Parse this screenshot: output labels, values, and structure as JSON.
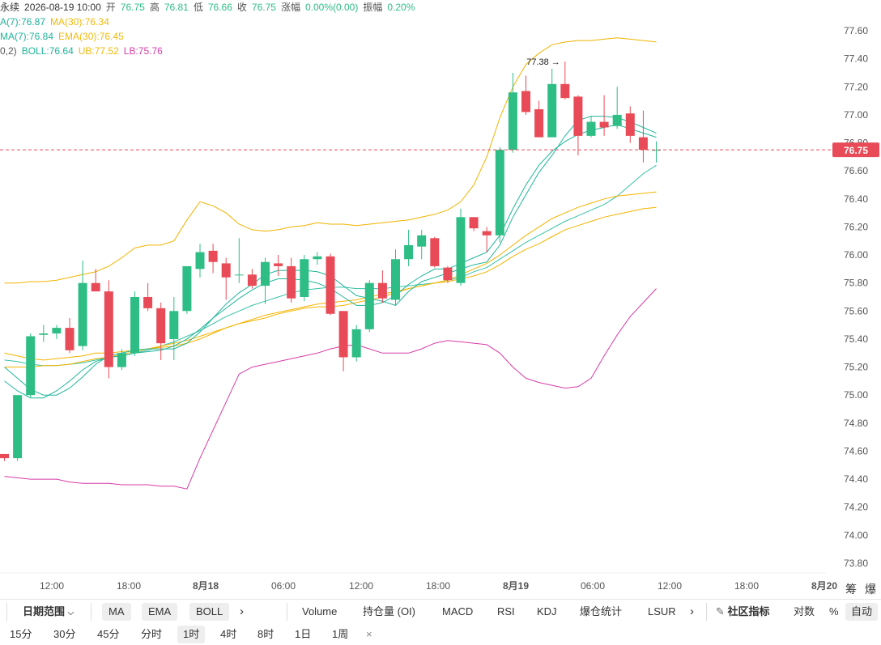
{
  "header": {
    "row1": {
      "symbol_fragment": "永续",
      "datetime": "2026-08-19 10:00",
      "open_label": "开",
      "open": "76.75",
      "high_label": "高",
      "high": "76.81",
      "low_label": "低",
      "low": "76.66",
      "close_label": "收",
      "close": "76.75",
      "change_label": "涨幅",
      "change": "0.00%(0.00)",
      "amp_label": "振幅",
      "amp": "0.20%"
    },
    "row2": {
      "ma7": "A(7):76.87",
      "ma30": "MA(30):76.34"
    },
    "row3": {
      "ema7": "MA(7):76.84",
      "ema30": "EMA(30):76.45"
    },
    "row4": {
      "boll_params": "0,2)",
      "boll": "BOLL:76.64",
      "ub": "UB:77.52",
      "lb": "LB:75.76"
    }
  },
  "chart_data": {
    "type": "candlestick",
    "interval": "1时",
    "ylim": [
      73.8,
      77.7
    ],
    "y_ticks": [
      "77.60",
      "77.40",
      "77.20",
      "77.00",
      "76.80",
      "76.60",
      "76.40",
      "76.20",
      "76.00",
      "75.80",
      "75.60",
      "75.40",
      "75.20",
      "75.00",
      "74.80",
      "74.60",
      "74.40",
      "74.20",
      "74.00",
      "73.80"
    ],
    "x_ticks": [
      "12:00",
      "18:00",
      "8月18",
      "06:00",
      "12:00",
      "18:00",
      "8月19",
      "06:00",
      "12:00",
      "18:00",
      "8月20"
    ],
    "x_tick_bold": [
      false,
      false,
      true,
      false,
      false,
      false,
      true,
      false,
      false,
      false,
      true
    ],
    "current_price": "76.75",
    "high_marker": "77.38",
    "colors": {
      "up": "#2ebd85",
      "down": "#e84b57",
      "ma7": "#20b59a",
      "ma30": "#f5b400",
      "boll_mid": "#36c2a6",
      "boll_up": "#f2b300",
      "boll_low": "#d63ca8",
      "price_line": "#e84b57"
    },
    "candles": [
      [
        74.58,
        74.58,
        74.53,
        74.55
      ],
      [
        74.55,
        75.0,
        74.53,
        75.0
      ],
      [
        75.0,
        75.44,
        74.98,
        75.42
      ],
      [
        75.43,
        75.5,
        75.38,
        75.44
      ],
      [
        75.44,
        75.5,
        75.4,
        75.48
      ],
      [
        75.48,
        75.55,
        75.3,
        75.32
      ],
      [
        75.35,
        75.96,
        75.32,
        75.8
      ],
      [
        75.8,
        75.9,
        75.74,
        75.74
      ],
      [
        75.74,
        75.82,
        75.12,
        75.2
      ],
      [
        75.2,
        75.33,
        75.18,
        75.3
      ],
      [
        75.3,
        75.74,
        75.28,
        75.7
      ],
      [
        75.7,
        75.8,
        75.6,
        75.62
      ],
      [
        75.62,
        75.66,
        75.25,
        75.37
      ],
      [
        75.4,
        75.7,
        75.25,
        75.6
      ],
      [
        75.6,
        75.91,
        75.58,
        75.92
      ],
      [
        75.9,
        76.08,
        75.84,
        76.02
      ],
      [
        76.03,
        76.08,
        75.87,
        75.95
      ],
      [
        75.94,
        75.98,
        75.68,
        75.84
      ],
      [
        75.86,
        76.12,
        75.8,
        75.86
      ],
      [
        75.86,
        75.9,
        75.76,
        75.78
      ],
      [
        75.78,
        75.98,
        75.65,
        75.95
      ],
      [
        75.94,
        76.0,
        75.85,
        75.92
      ],
      [
        75.92,
        75.98,
        75.66,
        75.69
      ],
      [
        75.7,
        76.0,
        75.67,
        75.97
      ],
      [
        75.97,
        76.02,
        75.93,
        75.99
      ],
      [
        75.99,
        76.01,
        75.57,
        75.58
      ],
      [
        75.6,
        75.6,
        75.17,
        75.27
      ],
      [
        75.27,
        75.5,
        75.24,
        75.47
      ],
      [
        75.47,
        75.82,
        75.45,
        75.8
      ],
      [
        75.8,
        75.89,
        75.66,
        75.69
      ],
      [
        75.68,
        76.04,
        75.64,
        75.97
      ],
      [
        75.97,
        76.18,
        75.92,
        76.07
      ],
      [
        76.06,
        76.18,
        75.97,
        76.14
      ],
      [
        76.12,
        76.13,
        75.91,
        75.92
      ],
      [
        75.91,
        75.92,
        75.8,
        75.82
      ],
      [
        75.8,
        76.33,
        75.78,
        76.27
      ],
      [
        76.27,
        76.27,
        76.17,
        76.19
      ],
      [
        76.17,
        76.2,
        76.02,
        76.14
      ],
      [
        76.14,
        76.77,
        76.09,
        76.75
      ],
      [
        76.75,
        77.3,
        76.73,
        77.16
      ],
      [
        77.17,
        77.28,
        77.0,
        77.02
      ],
      [
        77.04,
        77.1,
        76.84,
        76.84
      ],
      [
        76.84,
        77.33,
        76.84,
        77.22
      ],
      [
        77.22,
        77.38,
        77.11,
        77.12
      ],
      [
        77.13,
        77.14,
        76.71,
        76.85
      ],
      [
        76.85,
        76.99,
        76.84,
        76.95
      ],
      [
        76.95,
        77.14,
        76.85,
        76.91
      ],
      [
        76.92,
        77.2,
        76.9,
        77.0
      ],
      [
        77.01,
        77.06,
        76.8,
        76.85
      ],
      [
        76.84,
        77.03,
        76.66,
        76.75
      ],
      [
        76.75,
        76.81,
        76.66,
        76.75
      ]
    ],
    "ma7": [
      75.2,
      75.12,
      75.04,
      75.0,
      75.0,
      75.05,
      75.13,
      75.22,
      75.28,
      75.3,
      75.32,
      75.33,
      75.33,
      75.33,
      75.37,
      75.45,
      75.55,
      75.65,
      75.73,
      75.79,
      75.86,
      75.89,
      75.89,
      75.89,
      75.88,
      75.85,
      75.78,
      75.71,
      75.69,
      75.67,
      75.64,
      75.74,
      75.81,
      75.84,
      75.87,
      75.9,
      75.93,
      75.95,
      76.07,
      76.27,
      76.43,
      76.59,
      76.71,
      76.85,
      76.96,
      76.99,
      76.99,
      76.98,
      76.95,
      76.91,
      76.87
    ],
    "ma30": [
      75.3,
      75.28,
      75.26,
      75.25,
      75.26,
      75.27,
      75.28,
      75.3,
      75.3,
      75.31,
      75.32,
      75.33,
      75.34,
      75.35,
      75.37,
      75.4,
      75.44,
      75.48,
      75.51,
      75.54,
      75.57,
      75.59,
      75.61,
      75.63,
      75.65,
      75.66,
      75.67,
      75.68,
      75.7,
      75.72,
      75.74,
      75.76,
      75.78,
      75.8,
      75.81,
      75.83,
      75.85,
      75.88,
      75.93,
      75.99,
      76.04,
      76.08,
      76.13,
      76.18,
      76.21,
      76.24,
      76.27,
      76.29,
      76.31,
      76.33,
      76.34
    ],
    "ema7": [
      75.1,
      75.03,
      74.98,
      74.98,
      75.03,
      75.1,
      75.18,
      75.24,
      75.27,
      75.28,
      75.3,
      75.31,
      75.32,
      75.35,
      75.4,
      75.47,
      75.55,
      75.62,
      75.69,
      75.75,
      75.8,
      75.83,
      75.83,
      75.82,
      75.8,
      75.76,
      75.7,
      75.64,
      75.64,
      75.66,
      75.71,
      75.79,
      75.85,
      75.9,
      75.9,
      75.94,
      75.98,
      76.02,
      76.14,
      76.33,
      76.5,
      76.64,
      76.74,
      76.81,
      76.86,
      76.89,
      76.91,
      76.93,
      76.9,
      76.87,
      76.84
    ],
    "ema30": [
      75.2,
      75.2,
      75.2,
      75.21,
      75.21,
      75.22,
      75.24,
      75.26,
      75.27,
      75.29,
      75.31,
      75.33,
      75.35,
      75.37,
      75.39,
      75.42,
      75.45,
      75.48,
      75.51,
      75.53,
      75.55,
      75.58,
      75.6,
      75.62,
      75.63,
      75.63,
      75.64,
      75.66,
      75.68,
      75.7,
      75.73,
      75.76,
      75.78,
      75.8,
      75.82,
      75.86,
      75.9,
      75.94,
      76.0,
      76.07,
      76.14,
      76.2,
      76.26,
      76.3,
      76.34,
      76.37,
      76.4,
      76.42,
      76.43,
      76.44,
      76.45
    ],
    "boll_mid": [
      75.25,
      75.24,
      75.22,
      75.21,
      75.21,
      75.22,
      75.23,
      75.25,
      75.27,
      75.28,
      75.3,
      75.32,
      75.35,
      75.38,
      75.42,
      75.46,
      75.51,
      75.56,
      75.6,
      75.64,
      75.67,
      75.7,
      75.73,
      75.75,
      75.76,
      75.77,
      75.77,
      75.76,
      75.76,
      75.76,
      75.77,
      75.78,
      75.79,
      75.8,
      75.82,
      75.84,
      75.88,
      75.91,
      75.97,
      76.03,
      76.09,
      76.14,
      76.19,
      76.24,
      76.28,
      76.32,
      76.36,
      76.42,
      76.5,
      76.58,
      76.64
    ],
    "boll_up": [
      75.8,
      75.8,
      75.81,
      75.81,
      75.82,
      75.84,
      75.86,
      75.88,
      75.92,
      75.98,
      76.05,
      76.07,
      76.07,
      76.1,
      76.25,
      76.38,
      76.35,
      76.3,
      76.22,
      76.18,
      76.17,
      76.18,
      76.2,
      76.21,
      76.23,
      76.22,
      76.22,
      76.21,
      76.22,
      76.23,
      76.24,
      76.25,
      76.27,
      76.29,
      76.32,
      76.38,
      76.5,
      76.7,
      76.98,
      77.2,
      77.36,
      77.44,
      77.5,
      77.52,
      77.53,
      77.53,
      77.54,
      77.55,
      77.54,
      77.53,
      77.52
    ],
    "boll_low": [
      74.42,
      74.41,
      74.4,
      74.4,
      74.4,
      74.38,
      74.37,
      74.37,
      74.37,
      74.36,
      74.36,
      74.36,
      74.35,
      74.35,
      74.33,
      74.55,
      74.75,
      74.95,
      75.15,
      75.2,
      75.22,
      75.24,
      75.26,
      75.28,
      75.3,
      75.33,
      75.35,
      75.36,
      75.33,
      75.3,
      75.3,
      75.3,
      75.33,
      75.37,
      75.39,
      75.38,
      75.37,
      75.36,
      75.3,
      75.2,
      75.12,
      75.09,
      75.07,
      75.05,
      75.06,
      75.12,
      75.28,
      75.43,
      75.56,
      75.66,
      75.76
    ]
  },
  "toolbar": {
    "date_range": "日期范围",
    "indicators": [
      "MA",
      "EMA",
      "BOLL"
    ],
    "more1": "›",
    "subs": [
      "Volume",
      "持仓量 (OI)",
      "MACD",
      "RSI",
      "KDJ",
      "爆仓统计",
      "LSUR"
    ],
    "more2": "›",
    "community": "社区指标",
    "log": "对数",
    "percent": "%",
    "auto": "自动",
    "right_side": [
      "筹",
      "爆"
    ]
  },
  "intervals": {
    "items": [
      "15分",
      "30分",
      "45分",
      "分时",
      "1时",
      "4时",
      "8时",
      "1日",
      "1周"
    ],
    "active": "1时",
    "close": "×"
  }
}
